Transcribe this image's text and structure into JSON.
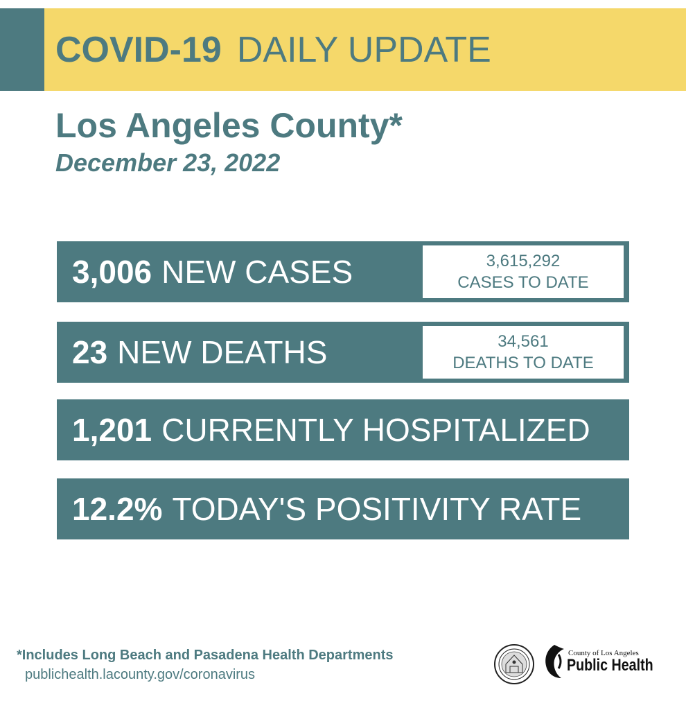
{
  "header": {
    "title_bold": "COVID-19",
    "title_light": "DAILY UPDATE",
    "background_color": "#f5d86a",
    "accent_color": "#4d7a80"
  },
  "location": {
    "county": "Los Angeles County*",
    "date": "December 23, 2022"
  },
  "stats": [
    {
      "number": "3,006",
      "label": "NEW CASES",
      "side_number": "3,615,292",
      "side_label": "CASES TO DATE"
    },
    {
      "number": "23",
      "label": "NEW DEATHS",
      "side_number": "34,561",
      "side_label": "DEATHS TO DATE"
    },
    {
      "number": "1,201",
      "label": "CURRENTLY HOSPITALIZED"
    },
    {
      "number": "12.2%",
      "label": "TODAY'S POSITIVITY RATE"
    }
  ],
  "footer": {
    "note": "*Includes Long Beach and Pasadena Health Departments",
    "url": "publichealth.lacounty.gov/coronavirus"
  },
  "logos": {
    "seal_icon": "county-seal-icon",
    "public_health_small": "County of Los Angeles",
    "public_health_big": "Public Health"
  }
}
